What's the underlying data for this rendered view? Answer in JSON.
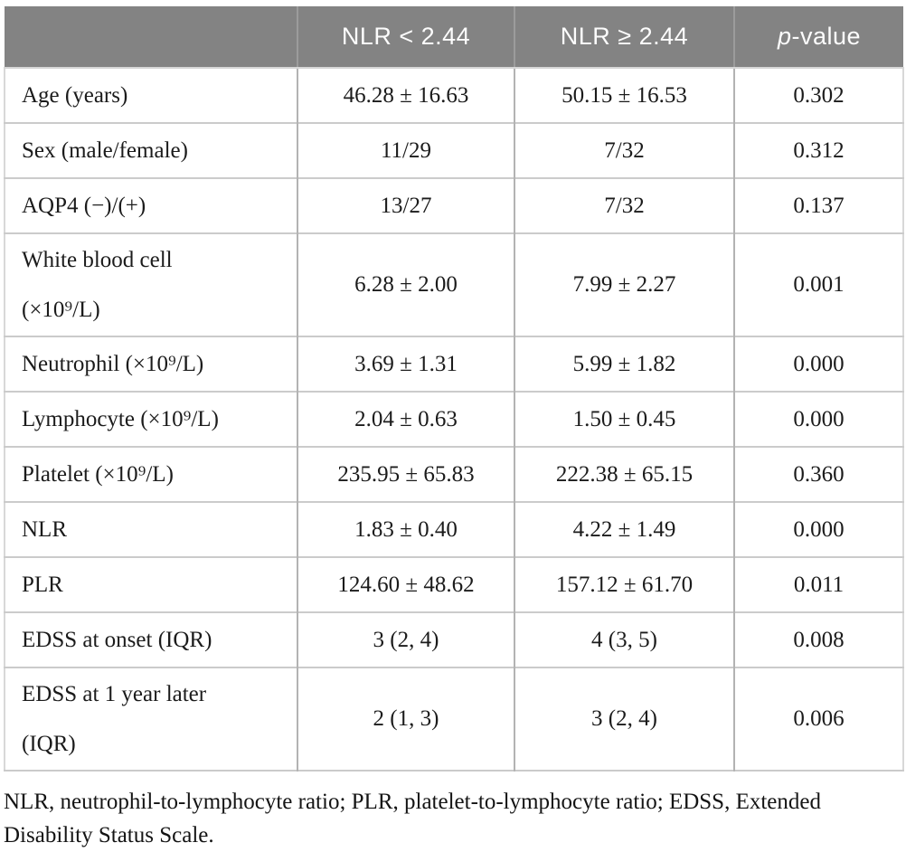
{
  "colors": {
    "header_bg": "#838383",
    "header_text": "#fcfcfc",
    "header_divider": "#9c9c9c",
    "body_text": "#1b1b1b",
    "border_h": "#cbcbcb",
    "border_v": "#b3b3b3"
  },
  "table": {
    "header": {
      "label": "",
      "col_nlr_low": "NLR < 2.44",
      "col_nlr_high": "NLR ≥ 2.44",
      "p_italic": "p",
      "p_rest": "-value"
    },
    "rows": [
      {
        "label_lines": [
          "Age (years)"
        ],
        "values": [
          "46.28 ± 16.63",
          "50.15 ± 16.53"
        ],
        "p": "0.302",
        "tall": false
      },
      {
        "label_lines": [
          "Sex (male/female)"
        ],
        "values": [
          "11/29",
          "7/32"
        ],
        "p": "0.312",
        "tall": false
      },
      {
        "label_lines": [
          "AQP4 (−)/(+)"
        ],
        "values": [
          "13/27",
          "7/32"
        ],
        "p": "0.137",
        "tall": false
      },
      {
        "label_lines": [
          "White blood cell",
          "(×10⁹/L)"
        ],
        "values": [
          "6.28 ± 2.00",
          "7.99 ± 2.27"
        ],
        "p": "0.001",
        "tall": true
      },
      {
        "label_lines": [
          "Neutrophil (×10⁹/L)"
        ],
        "values": [
          "3.69 ± 1.31",
          "5.99 ± 1.82"
        ],
        "p": "0.000",
        "tall": false
      },
      {
        "label_lines": [
          "Lymphocyte (×10⁹/L)"
        ],
        "values": [
          "2.04 ± 0.63",
          "1.50 ± 0.45"
        ],
        "p": "0.000",
        "tall": false
      },
      {
        "label_lines": [
          "Platelet (×10⁹/L)"
        ],
        "values": [
          "235.95 ± 65.83",
          "222.38 ± 65.15"
        ],
        "p": "0.360",
        "tall": false
      },
      {
        "label_lines": [
          "NLR"
        ],
        "values": [
          "1.83 ± 0.40",
          "4.22 ± 1.49"
        ],
        "p": "0.000",
        "tall": false
      },
      {
        "label_lines": [
          "PLR"
        ],
        "values": [
          "124.60 ± 48.62",
          "157.12 ± 61.70"
        ],
        "p": "0.011",
        "tall": false
      },
      {
        "label_lines": [
          "EDSS at onset (IQR)"
        ],
        "values": [
          "3 (2, 4)",
          "4 (3, 5)"
        ],
        "p": "0.008",
        "tall": false
      },
      {
        "label_lines": [
          "EDSS at 1 year later",
          "(IQR)"
        ],
        "values": [
          "2 (1, 3)",
          "3 (2, 4)"
        ],
        "p": "0.006",
        "tall": true
      }
    ]
  },
  "footnote": "NLR, neutrophil-to-lymphocyte ratio; PLR, platelet-to-lymphocyte ratio; EDSS, Extended Disability Status Scale.",
  "chart_data": {
    "type": "table",
    "title": "",
    "columns": [
      "",
      "NLR < 2.44",
      "NLR ≥ 2.44",
      "p-value"
    ],
    "rows": [
      [
        "Age (years)",
        "46.28 ± 16.63",
        "50.15 ± 16.53",
        "0.302"
      ],
      [
        "Sex (male/female)",
        "11/29",
        "7/32",
        "0.312"
      ],
      [
        "AQP4 (−)/(+)",
        "13/27",
        "7/32",
        "0.137"
      ],
      [
        "White blood cell (×10⁹/L)",
        "6.28 ± 2.00",
        "7.99 ± 2.27",
        "0.001"
      ],
      [
        "Neutrophil (×10⁹/L)",
        "3.69 ± 1.31",
        "5.99 ± 1.82",
        "0.000"
      ],
      [
        "Lymphocyte (×10⁹/L)",
        "2.04 ± 0.63",
        "1.50 ± 0.45",
        "0.000"
      ],
      [
        "Platelet (×10⁹/L)",
        "235.95 ± 65.83",
        "222.38 ± 65.15",
        "0.360"
      ],
      [
        "NLR",
        "1.83 ± 0.40",
        "4.22 ± 1.49",
        "0.000"
      ],
      [
        "PLR",
        "124.60 ± 48.62",
        "157.12 ± 61.70",
        "0.011"
      ],
      [
        "EDSS at onset (IQR)",
        "3 (2, 4)",
        "4 (3, 5)",
        "0.008"
      ],
      [
        "EDSS at 1 year later (IQR)",
        "2 (1, 3)",
        "3 (2, 4)",
        "0.006"
      ]
    ]
  }
}
